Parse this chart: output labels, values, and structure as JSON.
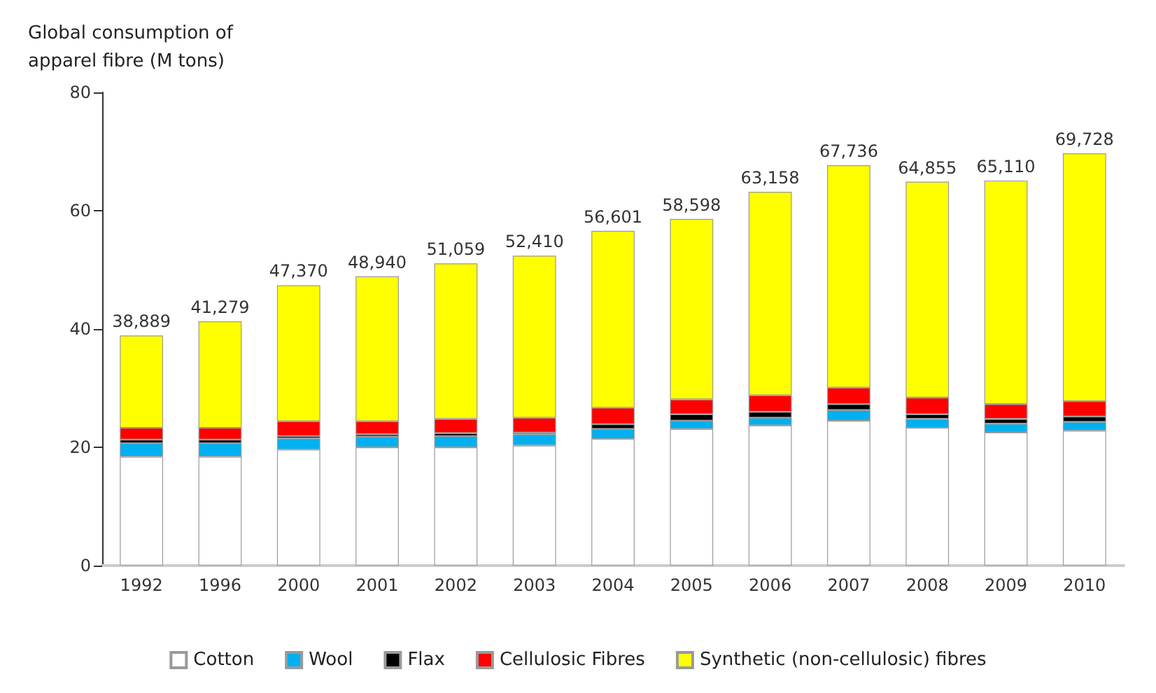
{
  "chart_data": {
    "type": "bar",
    "stacked": true,
    "ylabel": "Global consumption of\napparel fibre (M tons)",
    "categories": [
      "1992",
      "1996",
      "2000",
      "2001",
      "2002",
      "2003",
      "2004",
      "2005",
      "2006",
      "2007",
      "2008",
      "2009",
      "2010"
    ],
    "series": [
      {
        "name": "Cotton",
        "color": "#ffffff",
        "values": [
          18.4,
          18.4,
          19.6,
          20.0,
          20.0,
          20.3,
          21.4,
          23.1,
          23.7,
          24.5,
          23.3,
          22.5,
          22.8
        ]
      },
      {
        "name": "Wool",
        "color": "#00b0f0",
        "values": [
          2.3,
          2.3,
          1.9,
          1.8,
          1.9,
          1.9,
          1.7,
          1.4,
          1.3,
          1.8,
          1.5,
          1.5,
          1.5
        ]
      },
      {
        "name": "Flax",
        "color": "#000000",
        "values": [
          0.6,
          0.6,
          0.4,
          0.4,
          0.5,
          0.3,
          0.8,
          1.1,
          1.0,
          1.0,
          0.8,
          0.8,
          0.9
        ]
      },
      {
        "name": "Cellulosic Fibres",
        "color": "#ff0000",
        "values": [
          2.0,
          2.0,
          2.5,
          2.2,
          2.4,
          2.5,
          2.8,
          2.5,
          2.8,
          2.8,
          2.8,
          2.5,
          2.6
        ]
      },
      {
        "name": "Synthetic (non-cellulosic) fibres",
        "color": "#ffff00",
        "values": [
          15.6,
          18.0,
          23.0,
          24.5,
          26.3,
          27.4,
          29.9,
          30.5,
          34.4,
          37.6,
          36.5,
          37.8,
          41.9
        ]
      }
    ],
    "annotations": [
      {
        "text": "38,889",
        "x": "1992",
        "y": 38.9
      },
      {
        "text": "41,279",
        "x": "1996",
        "y": 41.3
      },
      {
        "text": "47,370",
        "x": "2000",
        "y": 47.4
      },
      {
        "text": "48,940",
        "x": "2001",
        "y": 48.9
      },
      {
        "text": "51,059",
        "x": "2002",
        "y": 51.1
      },
      {
        "text": "52,410",
        "x": "2003",
        "y": 52.4
      },
      {
        "text": "56,601",
        "x": "2004",
        "y": 56.6
      },
      {
        "text": "58,598",
        "x": "2005",
        "y": 58.6
      },
      {
        "text": "63,158",
        "x": "2006",
        "y": 63.2
      },
      {
        "text": "67,736",
        "x": "2007",
        "y": 67.7
      },
      {
        "text": "64,855",
        "x": "2008",
        "y": 64.9
      },
      {
        "text": "65,110",
        "x": "2009",
        "y": 65.1
      },
      {
        "text": "69,728",
        "x": "2010",
        "y": 69.7
      }
    ],
    "ylim": [
      0,
      80
    ],
    "yticks": [
      0,
      20,
      40,
      60,
      80
    ],
    "grid": false,
    "legend": "bottom"
  }
}
